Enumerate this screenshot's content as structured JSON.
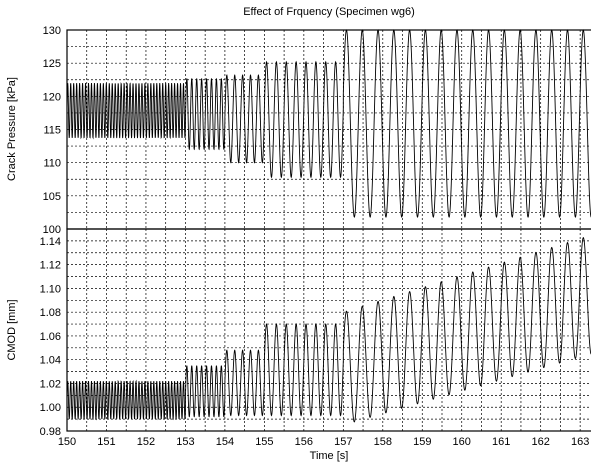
{
  "chart_data": {
    "type": "line",
    "title": "Effect of Frquency (Specimen wg6)",
    "xlabel": "Time [s]",
    "xlim": [
      150,
      163.3
    ],
    "xticks": [
      "150",
      "151",
      "152",
      "153",
      "154",
      "155",
      "156",
      "157",
      "158",
      "159",
      "160",
      "161",
      "162",
      "163"
    ],
    "grid": true,
    "panels": [
      {
        "name": "pressure",
        "ylabel": "Crack Pressure [kPa]",
        "ylim": [
          100,
          130
        ],
        "yticks": [
          "100",
          "105",
          "110",
          "115",
          "120",
          "125",
          "130"
        ],
        "segments": [
          {
            "t_start": 150.0,
            "t_end": 153.0,
            "frequency_hz": 13.3,
            "min": 113.7,
            "max": 122.0
          },
          {
            "t_start": 153.0,
            "t_end": 154.0,
            "frequency_hz": 8.0,
            "min": 112.0,
            "max": 122.7
          },
          {
            "t_start": 154.0,
            "t_end": 155.0,
            "frequency_hz": 5.0,
            "min": 110.0,
            "max": 123.2
          },
          {
            "t_start": 155.0,
            "t_end": 157.0,
            "frequency_hz": 4.0,
            "min": 107.8,
            "max": 125.2
          },
          {
            "t_start": 157.0,
            "t_end": 163.3,
            "frequency_hz": 2.5,
            "min": 101.8,
            "max": 130.0
          }
        ]
      },
      {
        "name": "cmod",
        "ylabel": "CMOD [mm]",
        "ylim": [
          0.98,
          1.15
        ],
        "yticks": [
          "0.98",
          "1.00",
          "1.02",
          "1.04",
          "1.06",
          "1.08",
          "1.10",
          "1.12",
          "1.14"
        ],
        "segments": [
          {
            "t_start": 150.0,
            "t_end": 153.0,
            "frequency_hz": 13.3,
            "min": 0.99,
            "max": 1.022
          },
          {
            "t_start": 153.0,
            "t_end": 154.0,
            "frequency_hz": 8.0,
            "min": 0.992,
            "max": 1.035
          },
          {
            "t_start": 154.0,
            "t_end": 155.0,
            "frequency_hz": 5.0,
            "min": 0.993,
            "max": 1.048
          },
          {
            "t_start": 155.0,
            "t_end": 157.0,
            "frequency_hz": 4.0,
            "min": 0.993,
            "max": 1.07
          },
          {
            "t_start": 157.0,
            "t_end": 163.3,
            "frequency_hz": 2.5,
            "min_start": 0.985,
            "min_end": 1.045,
            "max_start": 1.08,
            "max_end": 1.145
          }
        ]
      }
    ]
  }
}
